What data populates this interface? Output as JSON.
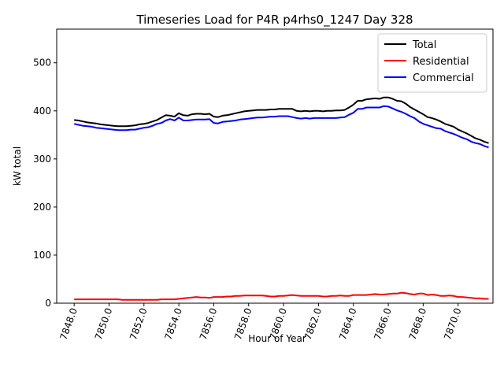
{
  "chart_data": {
    "type": "line",
    "title": "Timeseries Load for P4R p4rhs0_1247  Day 328",
    "xlabel": "Hour of Year",
    "ylabel": "kW total",
    "xlim": [
      7847.0,
      7872.0
    ],
    "ylim": [
      0,
      570
    ],
    "xticks": [
      7848,
      7850,
      7852,
      7854,
      7856,
      7858,
      7860,
      7862,
      7864,
      7866,
      7868,
      7870
    ],
    "xtick_labels": [
      "7848.0",
      "7850.0",
      "7852.0",
      "7854.0",
      "7856.0",
      "7858.0",
      "7860.0",
      "7862.0",
      "7864.0",
      "7866.0",
      "7868.0",
      "7870.0"
    ],
    "yticks": [
      0,
      100,
      200,
      300,
      400,
      500
    ],
    "ytick_labels": [
      "0",
      "100",
      "200",
      "300",
      "400",
      "500"
    ],
    "legend_position": "top-right",
    "x": [
      7848.0,
      7848.25,
      7848.5,
      7848.75,
      7849.0,
      7849.25,
      7849.5,
      7849.75,
      7850.0,
      7850.25,
      7850.5,
      7850.75,
      7851.0,
      7851.25,
      7851.5,
      7851.75,
      7852.0,
      7852.25,
      7852.5,
      7852.75,
      7853.0,
      7853.25,
      7853.5,
      7853.75,
      7854.0,
      7854.25,
      7854.5,
      7854.75,
      7855.0,
      7855.25,
      7855.5,
      7855.75,
      7856.0,
      7856.25,
      7856.5,
      7856.75,
      7857.0,
      7857.25,
      7857.5,
      7857.75,
      7858.0,
      7858.25,
      7858.5,
      7858.75,
      7859.0,
      7859.25,
      7859.5,
      7859.75,
      7860.0,
      7860.25,
      7860.5,
      7860.75,
      7861.0,
      7861.25,
      7861.5,
      7861.75,
      7862.0,
      7862.25,
      7862.5,
      7862.75,
      7863.0,
      7863.25,
      7863.5,
      7863.75,
      7864.0,
      7864.25,
      7864.5,
      7864.75,
      7865.0,
      7865.25,
      7865.5,
      7865.75,
      7866.0,
      7866.25,
      7866.5,
      7866.75,
      7867.0,
      7867.25,
      7867.5,
      7867.75,
      7868.0,
      7868.25,
      7868.5,
      7868.75,
      7869.0,
      7869.25,
      7869.5,
      7869.75,
      7870.0,
      7870.25,
      7870.5,
      7870.75,
      7871.0,
      7871.25,
      7871.5,
      7871.75
    ],
    "series": [
      {
        "name": "Total",
        "color": "#000000",
        "values": [
          381,
          380,
          378,
          376,
          375,
          374,
          372,
          371,
          370,
          369,
          368,
          368,
          368,
          369,
          370,
          372,
          373,
          375,
          378,
          381,
          386,
          391,
          390,
          388,
          395,
          391,
          390,
          393,
          394,
          394,
          393,
          394,
          388,
          387,
          390,
          391,
          393,
          395,
          397,
          399,
          400,
          401,
          402,
          402,
          402,
          403,
          403,
          404,
          404,
          404,
          404,
          400,
          399,
          400,
          399,
          400,
          400,
          399,
          400,
          400,
          401,
          401,
          402,
          407,
          413,
          421,
          421,
          424,
          425,
          426,
          425,
          428,
          428,
          425,
          421,
          420,
          415,
          408,
          403,
          398,
          393,
          387,
          385,
          382,
          378,
          373,
          370,
          367,
          361,
          357,
          353,
          348,
          343,
          340,
          336,
          333
        ]
      },
      {
        "name": "Residential",
        "color": "#ff0000",
        "values": [
          8,
          8,
          8,
          8,
          8,
          8,
          8,
          8,
          8,
          8,
          8,
          7,
          7,
          7,
          7,
          7,
          7,
          7,
          7,
          7,
          8,
          8,
          8,
          8,
          9,
          10,
          11,
          12,
          13,
          12,
          12,
          11,
          13,
          13,
          13,
          14,
          14,
          15,
          15,
          16,
          16,
          16,
          16,
          16,
          15,
          14,
          14,
          15,
          15,
          16,
          17,
          16,
          15,
          15,
          15,
          15,
          15,
          14,
          14,
          15,
          15,
          16,
          15,
          15,
          17,
          17,
          17,
          17,
          18,
          19,
          18,
          18,
          19,
          20,
          20,
          22,
          21,
          19,
          18,
          20,
          20,
          17,
          18,
          17,
          15,
          15,
          16,
          15,
          13,
          13,
          12,
          11,
          10,
          10,
          9,
          9
        ]
      },
      {
        "name": "Commercial",
        "color": "#0000ff",
        "values": [
          373,
          371,
          369,
          368,
          367,
          365,
          364,
          363,
          362,
          361,
          360,
          360,
          360,
          361,
          361,
          363,
          365,
          366,
          369,
          373,
          375,
          380,
          383,
          380,
          386,
          380,
          380,
          381,
          382,
          382,
          382,
          383,
          375,
          374,
          377,
          378,
          379,
          380,
          382,
          383,
          384,
          385,
          386,
          386,
          387,
          388,
          388,
          389,
          389,
          389,
          387,
          385,
          384,
          385,
          384,
          385,
          385,
          385,
          385,
          385,
          385,
          386,
          387,
          392,
          396,
          404,
          404,
          407,
          407,
          407,
          407,
          410,
          409,
          405,
          401,
          398,
          394,
          389,
          385,
          378,
          373,
          370,
          367,
          364,
          363,
          358,
          355,
          352,
          348,
          344,
          341,
          336,
          333,
          331,
          327,
          324
        ]
      }
    ]
  }
}
